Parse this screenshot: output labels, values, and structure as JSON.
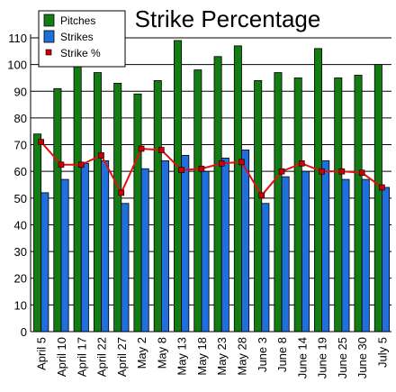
{
  "chart_data": {
    "type": "bar",
    "title": "Strike Percentage",
    "xlabel": "",
    "ylabel": "",
    "ylim": [
      0,
      110
    ],
    "ytick_step": 10,
    "grid": true,
    "legend_position": "top-left",
    "categories": [
      "April 5",
      "April 10",
      "April 17",
      "April 22",
      "April 27",
      "May 2",
      "May 8",
      "May 13",
      "May 18",
      "May 23",
      "May 28",
      "June 3",
      "June 8",
      "June 14",
      "June 19",
      "June 25",
      "June 30",
      "July 5"
    ],
    "x_tick_labels": [
      "April 5",
      "April 10",
      "April 17",
      "April 22",
      "April 27",
      "May 2",
      "May 8",
      "May 13",
      "May 18",
      "May 23",
      "May 28",
      "June 3",
      "June 8",
      "June 14",
      "June 19",
      "June 25",
      "June 30",
      "July 5"
    ],
    "series": [
      {
        "name": "Pitches",
        "kind": "bar",
        "color": "#137d13",
        "values": [
          74,
          91,
          101,
          97,
          93,
          89,
          94,
          109,
          98,
          103,
          107,
          94,
          97,
          95,
          106,
          95,
          96,
          100
        ]
      },
      {
        "name": "Strikes",
        "kind": "bar",
        "color": "#1f6fdc",
        "values": [
          52,
          57,
          63,
          64,
          48,
          61,
          64,
          66,
          60,
          65,
          68,
          48,
          58,
          60,
          64,
          57,
          57,
          54
        ]
      },
      {
        "name": "Strike %",
        "kind": "line",
        "color": "#e01010",
        "marker_color": "#cc0000",
        "values": [
          71,
          62.5,
          62.5,
          66,
          52,
          68.5,
          68,
          60.5,
          61,
          63,
          63.5,
          51,
          60,
          63,
          60,
          60,
          59.5,
          54
        ]
      }
    ]
  }
}
